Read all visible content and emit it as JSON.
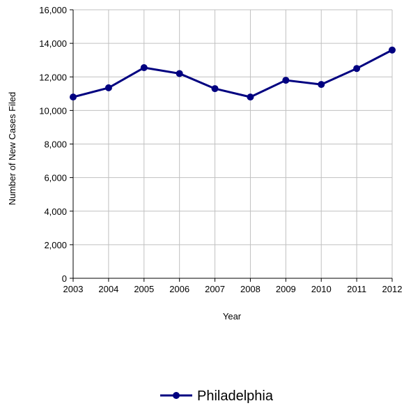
{
  "chart_data": {
    "type": "line",
    "xlabel": "Year",
    "ylabel": "Number of New Cases Filed",
    "categories": [
      "2003",
      "2004",
      "2005",
      "2006",
      "2007",
      "2008",
      "2009",
      "2010",
      "2011",
      "2012"
    ],
    "series": [
      {
        "name": "Philadelphia",
        "values": [
          10800,
          11350,
          12550,
          12200,
          11300,
          10800,
          11800,
          11550,
          12500,
          13600
        ],
        "color": "#000080"
      }
    ],
    "ylim": [
      0,
      16000
    ],
    "yticks": [
      "0",
      "2,000",
      "4,000",
      "6,000",
      "8,000",
      "10,000",
      "12,000",
      "14,000",
      "16,000"
    ],
    "grid": true,
    "legend_position": "bottom-center"
  }
}
